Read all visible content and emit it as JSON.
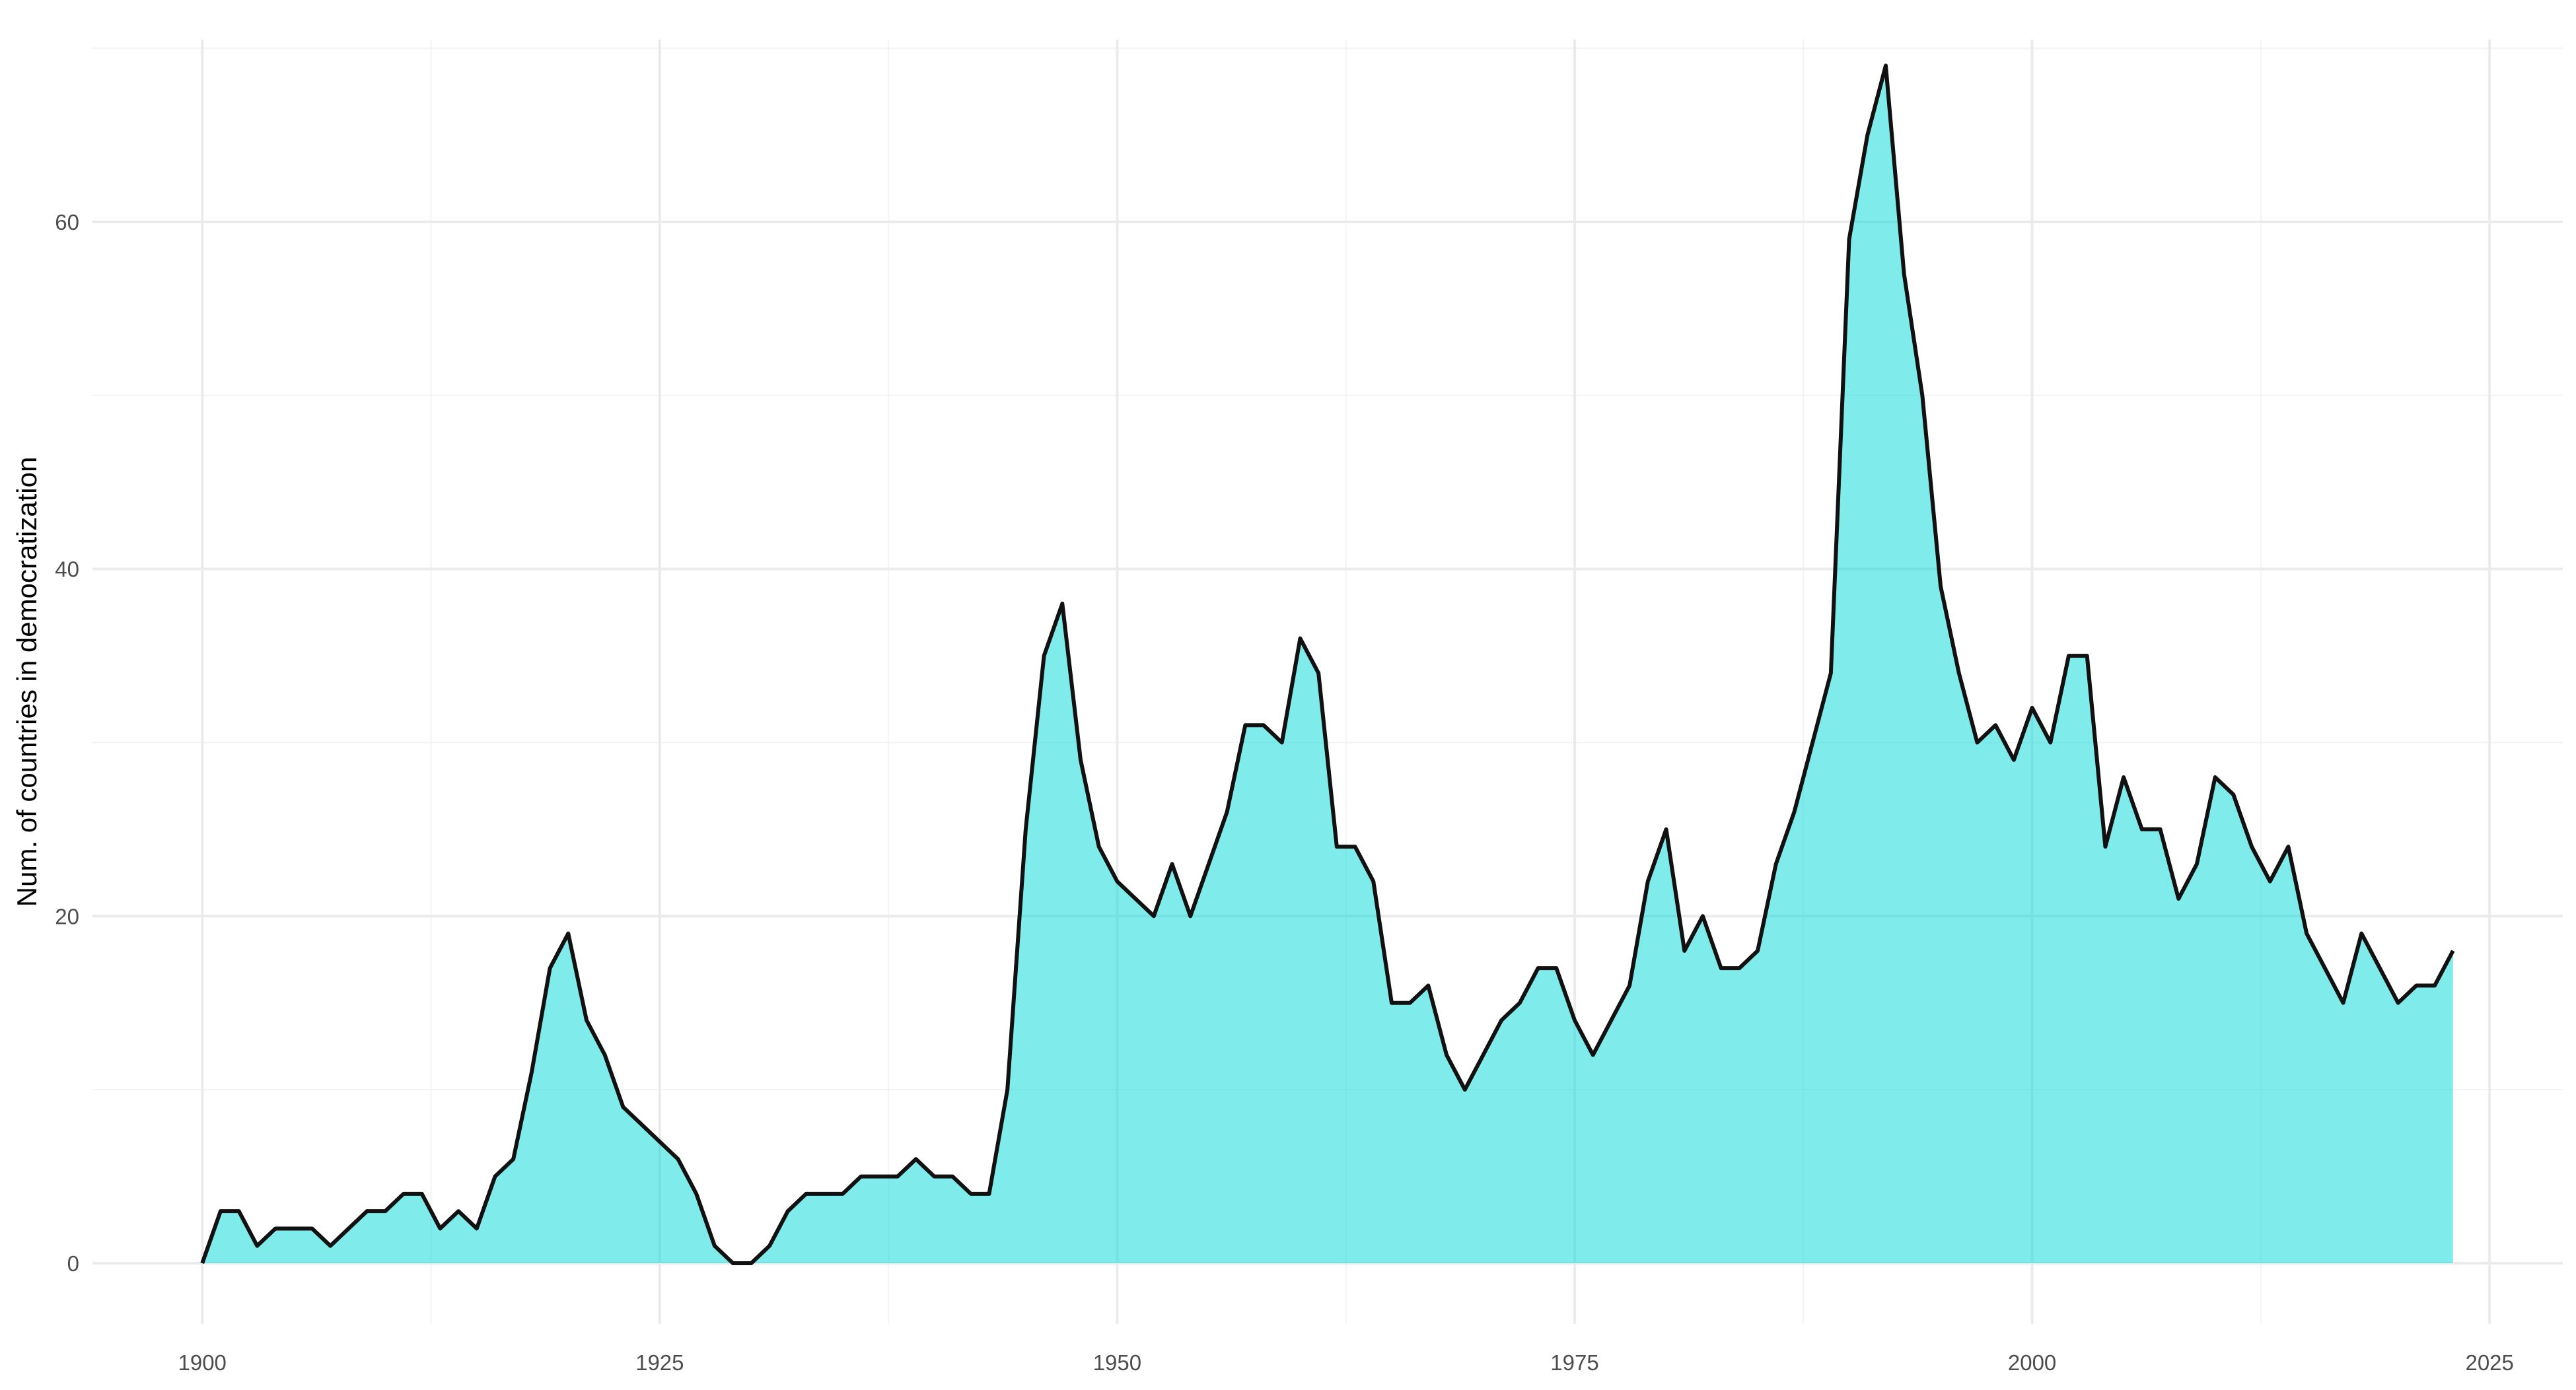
{
  "chart_data": {
    "type": "area",
    "title": "",
    "xlabel": "",
    "ylabel": "Num. of countries in democratization",
    "xlim": [
      1894,
      2029
    ],
    "ylim": [
      -3.5,
      70.5
    ],
    "x_ticks": [
      1900,
      1925,
      1950,
      1975,
      2000,
      2025
    ],
    "y_ticks": [
      0,
      20,
      40,
      60
    ],
    "grid": true,
    "legend": "none",
    "colors": {
      "fill": "#00d8d8",
      "fill_opacity": 0.5,
      "line": "#111111",
      "grid": "#ebebeb"
    },
    "series": [
      {
        "x": [
          1900,
          1901,
          1902,
          1903,
          1904,
          1905,
          1906,
          1907,
          1908,
          1909,
          1910,
          1911,
          1912,
          1913,
          1914,
          1915,
          1916,
          1917,
          1918,
          1919,
          1920,
          1921,
          1922,
          1923,
          1924,
          1925,
          1926,
          1927,
          1928,
          1929,
          1930,
          1931,
          1932,
          1933,
          1934,
          1935,
          1936,
          1937,
          1938,
          1939,
          1940,
          1941,
          1942,
          1943,
          1944,
          1945,
          1946,
          1947,
          1948,
          1949,
          1950,
          1951,
          1952,
          1953,
          1954,
          1955,
          1956,
          1957,
          1958,
          1959,
          1960,
          1961,
          1962,
          1963,
          1964,
          1965,
          1966,
          1967,
          1968,
          1969,
          1970,
          1971,
          1972,
          1973,
          1974,
          1975,
          1976,
          1977,
          1978,
          1979,
          1980,
          1981,
          1982,
          1983,
          1984,
          1985,
          1986,
          1987,
          1988,
          1989,
          1990,
          1991,
          1992,
          1993,
          1994,
          1995,
          1996,
          1997,
          1998,
          1999,
          2000,
          2001,
          2002,
          2003,
          2004,
          2005,
          2006,
          2007,
          2008,
          2009,
          2010,
          2011,
          2012,
          2013,
          2014,
          2015,
          2016,
          2017,
          2018,
          2019,
          2020,
          2021,
          2022,
          2023
        ],
        "values": [
          0,
          3,
          3,
          1,
          2,
          2,
          2,
          1,
          2,
          3,
          3,
          4,
          4,
          2,
          3,
          2,
          5,
          6,
          11,
          17,
          19,
          14,
          12,
          9,
          8,
          7,
          6,
          4,
          1,
          0,
          0,
          1,
          3,
          4,
          4,
          4,
          5,
          5,
          5,
          6,
          5,
          5,
          4,
          4,
          10,
          25,
          35,
          38,
          29,
          24,
          22,
          21,
          20,
          23,
          20,
          23,
          26,
          31,
          31,
          30,
          36,
          34,
          24,
          24,
          22,
          15,
          15,
          16,
          12,
          10,
          12,
          14,
          15,
          17,
          17,
          14,
          12,
          14,
          16,
          22,
          25,
          18,
          20,
          17,
          17,
          18,
          23,
          26,
          30,
          34,
          59,
          65,
          69,
          57,
          50,
          39,
          34,
          30,
          31,
          29,
          32,
          30,
          35,
          35,
          24,
          28,
          25,
          25,
          21,
          23,
          28,
          27,
          24,
          22,
          24,
          19,
          17,
          15,
          19,
          17,
          15,
          16,
          16,
          18
        ]
      }
    ]
  }
}
